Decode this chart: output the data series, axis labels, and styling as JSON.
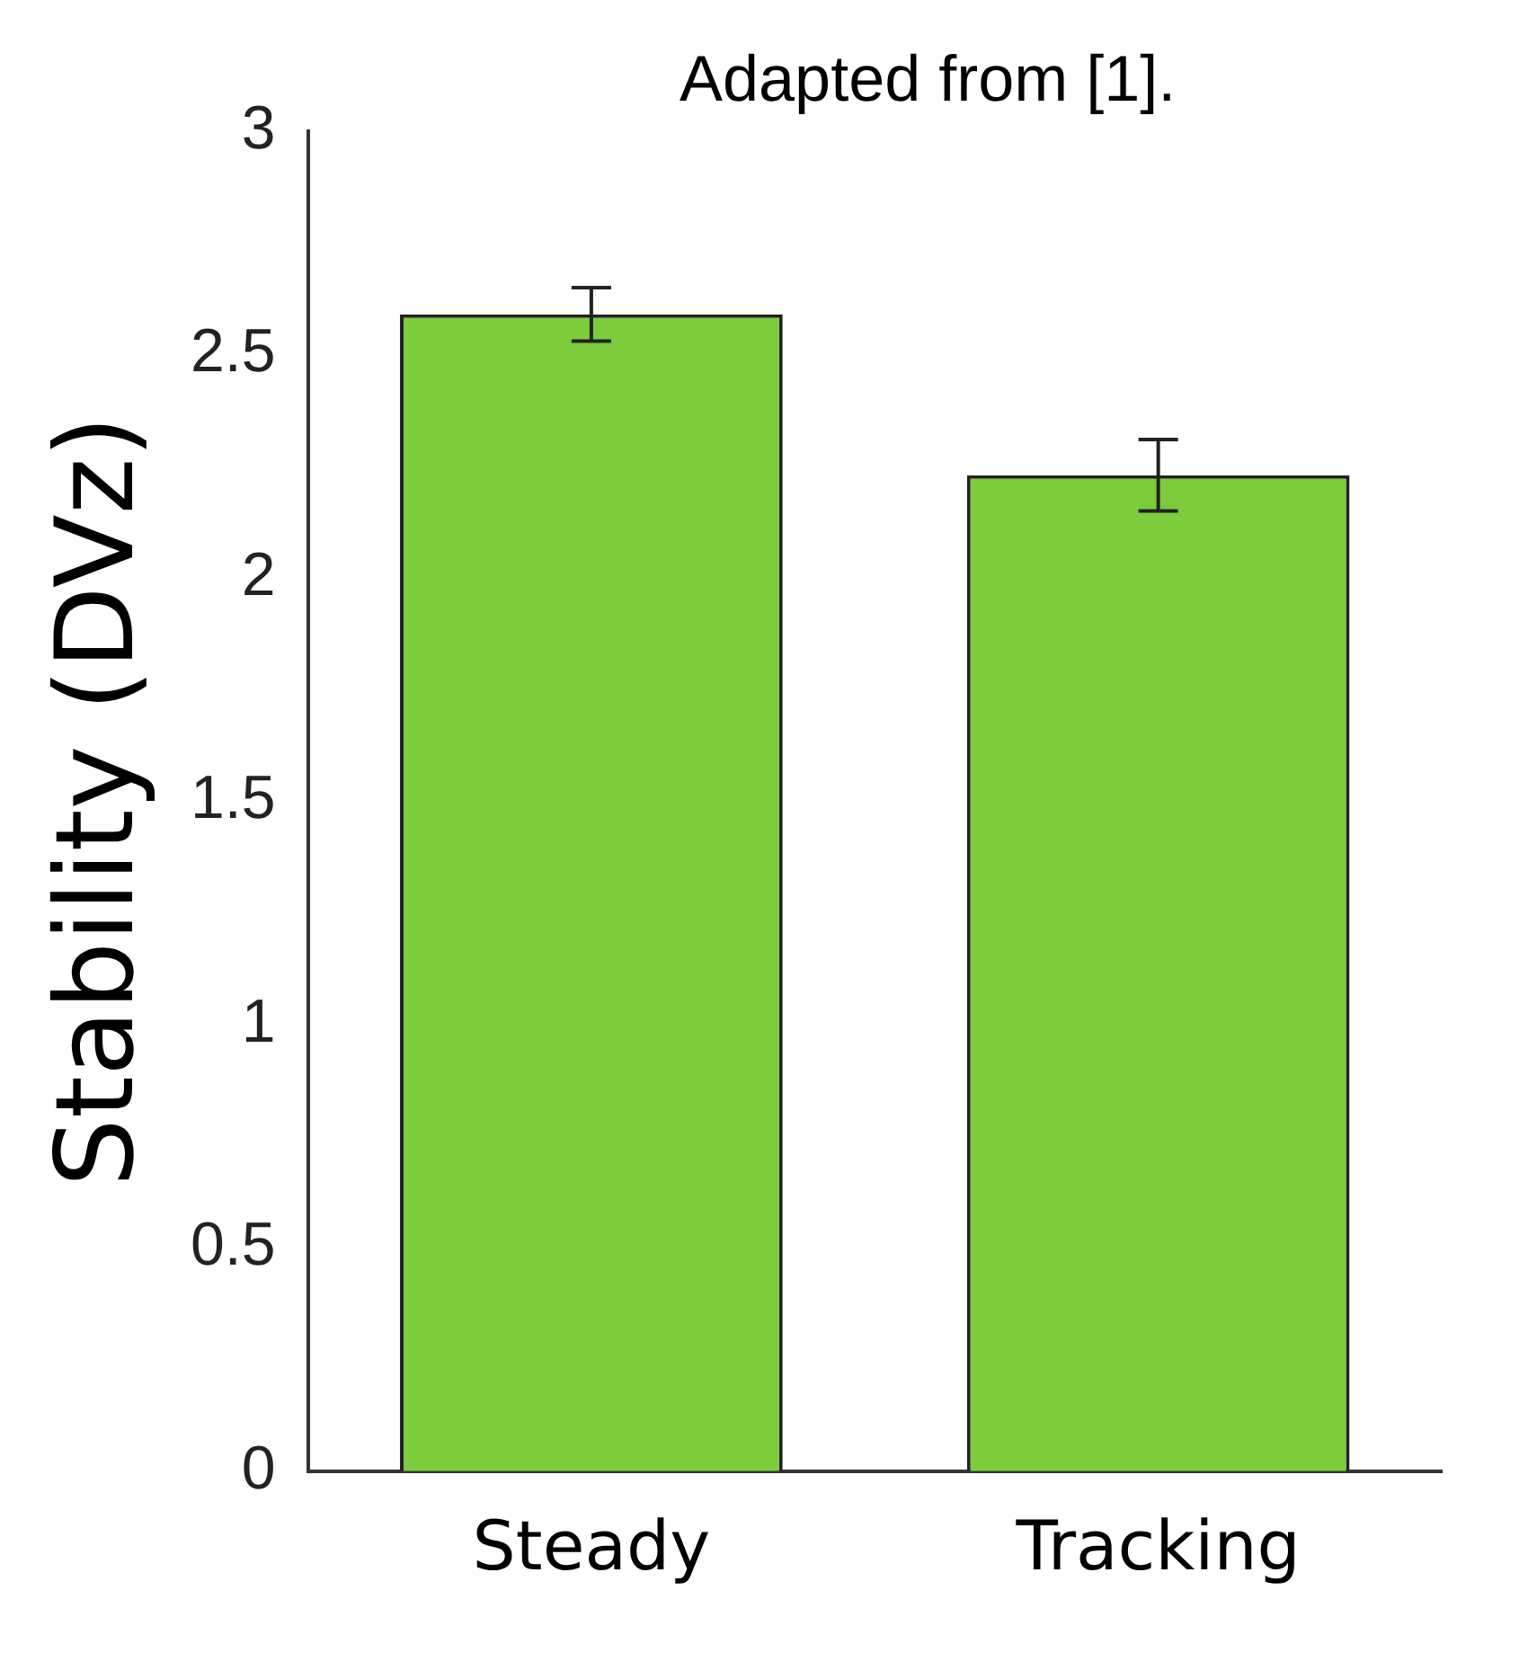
{
  "chart_data": {
    "type": "bar",
    "ylabel": "Stability (DVz)",
    "categories": [
      "Steady",
      "Tracking"
    ],
    "values": [
      2.59,
      2.23
    ],
    "errors": [
      0.06,
      0.08
    ],
    "color": "#7ccc3c",
    "ylim": [
      0,
      3
    ],
    "yticks": [
      0,
      0.5,
      1,
      1.5,
      2,
      2.5,
      3
    ],
    "grid": false,
    "legend": false,
    "annotations": [
      "Adapted from [1]."
    ]
  }
}
